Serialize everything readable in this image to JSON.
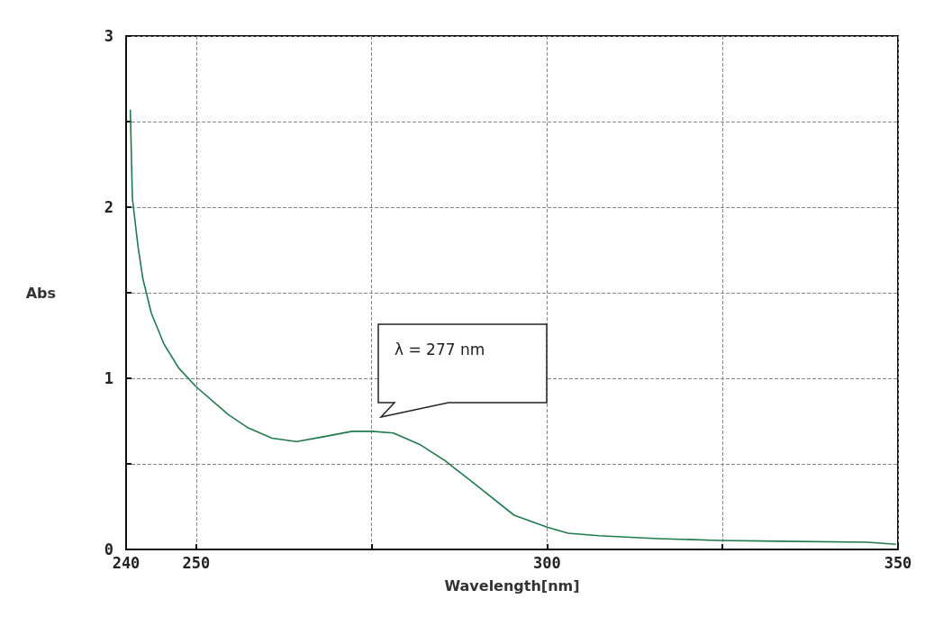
{
  "chart_data": {
    "type": "line",
    "xlabel": "Wavelength[nm]",
    "ylabel": "Abs",
    "annotations": [
      "λ = 277 nm"
    ],
    "x": [
      240.6,
      240.9,
      241.7,
      242.4,
      243.6,
      245.4,
      247.5,
      250,
      254.5,
      257.4,
      260.8,
      264.3,
      268.3,
      272.2,
      275.1,
      278.1,
      282,
      285.4,
      290.4,
      295.3,
      300,
      303,
      307.4,
      315.8,
      324.4,
      333,
      345.7,
      349.7
    ],
    "series": [
      {
        "color": "#1f7a4c",
        "values": [
          2.57,
          2.05,
          1.77,
          1.58,
          1.38,
          1.2,
          1.06,
          0.95,
          0.79,
          0.71,
          0.65,
          0.63,
          0.66,
          0.69,
          0.69,
          0.68,
          0.61,
          0.52,
          0.36,
          0.2,
          0.13,
          0.095,
          0.08,
          0.063,
          0.053,
          0.048,
          0.042,
          0.03
        ]
      }
    ],
    "xlim": [
      240,
      350
    ],
    "xticks": [
      240,
      250,
      {
        "value": 275,
        "label": null
      },
      300,
      {
        "value": 325,
        "label": null
      },
      350
    ],
    "ylim": [
      0,
      3
    ],
    "yticks": [
      0,
      {
        "value": 0.5,
        "label": null
      },
      1,
      {
        "value": 1.5,
        "label": null
      },
      2,
      {
        "value": 2.5,
        "label": null
      },
      3
    ],
    "grid": true,
    "marker": "none",
    "line_style": "solid"
  }
}
